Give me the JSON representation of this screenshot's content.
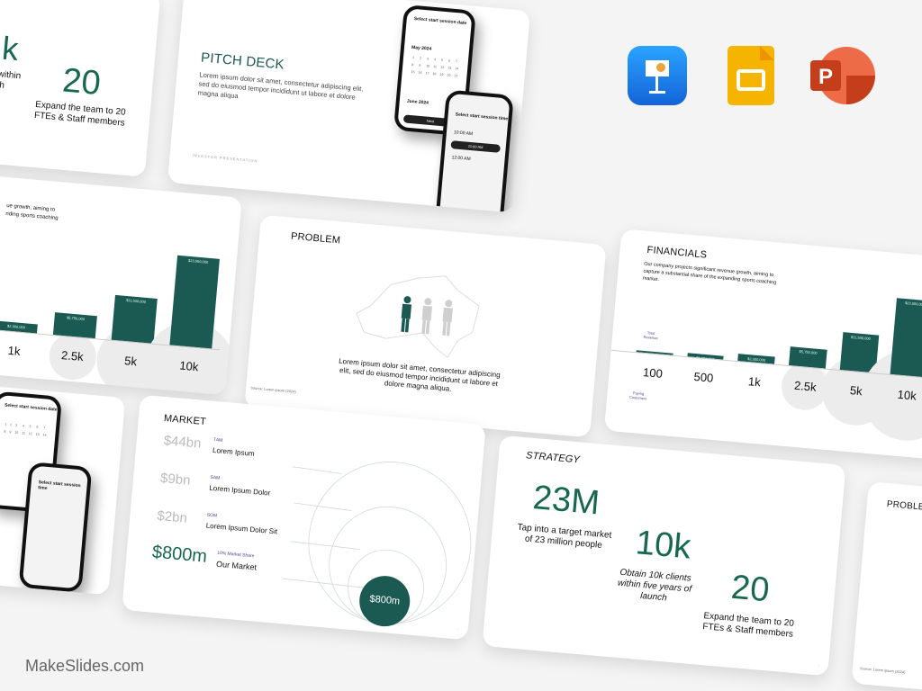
{
  "brand": "MakeSlides.com",
  "app_icons": [
    {
      "name": "keynote-icon",
      "color": "#1a8cf0"
    },
    {
      "name": "google-slides-icon",
      "color": "#f4b400"
    },
    {
      "name": "powerpoint-icon",
      "color": "#d04423"
    }
  ],
  "colors": {
    "accent": "#17684f",
    "bar": "#1b5a52"
  },
  "strategy": {
    "title": "STRATEGY",
    "stats": [
      {
        "value": "23M",
        "caption": "Tap into a target market of 23 million people"
      },
      {
        "value": "10k",
        "caption": "Obtain 10k clients within five years of launch"
      },
      {
        "value": "20",
        "caption": "Expand the team to 20 FTEs & Staff members"
      }
    ],
    "partial_value": "k",
    "partial_caption": "s within\nnch"
  },
  "pitch": {
    "title": "PITCH DECK",
    "body": "Lorem ipsum dolor sit amet, consectetur adipiscing elit, sed do eiusmod tempor incididunt ut labore et dolore magna aliqua",
    "footer": "INVESTOR PRESENTATION",
    "phone1_title": "Select start session date",
    "phone1_month1": "May 2024",
    "phone1_month2": "June 2024",
    "phone1_button": "Next",
    "phone2_title": "Select start session time",
    "phone2_slots": [
      "10:00 AM",
      "11:00 AM",
      "12:00 AM"
    ]
  },
  "problem": {
    "title": "PROBLEM",
    "body": "Lorem ipsum dolor sit amet, consectetur adipiscing elit, sed do eiusmod tempor incididunt ut labore et dolore magna aliqua.",
    "source": "Source: Lorem ipsum (2024)"
  },
  "financials": {
    "title": "FINANCIALS",
    "body": "Our company projects significant revenue growth, aiming to capture a substantial share of the expanding sports coaching market.",
    "revenue_label": "Total Revenue",
    "customers_label": "Paying Customers",
    "partial_body": "ue growth, aiming to\nnding sports coaching"
  },
  "chart_data": {
    "type": "bar",
    "categories": [
      "100",
      "500",
      "1k",
      "2.5k",
      "5k",
      "10k"
    ],
    "values": [
      230000,
      1150000,
      2300000,
      5750000,
      11500000,
      23000000
    ],
    "data_labels": [
      "",
      "$1,150,000",
      "$2,300,000",
      "$5,750,000",
      "$11,500,000",
      "$23,000,000"
    ],
    "xlabel": "Paying Customers",
    "ylabel": "Total Revenue",
    "grid": false
  },
  "market": {
    "title": "MARKET",
    "rows": [
      {
        "value": "$44bn",
        "tag": "TAM",
        "label": "Lorem Ipsum"
      },
      {
        "value": "$9bn",
        "tag": "SAM",
        "label": "Lorem Ipsum Dolor"
      },
      {
        "value": "$2bn",
        "tag": "SOM",
        "label": "Lorem Ipsum Dolor Sit"
      },
      {
        "value": "$800m",
        "tag": "10% Market Share",
        "label": "Our Market"
      }
    ],
    "circle_label": "$800m"
  }
}
